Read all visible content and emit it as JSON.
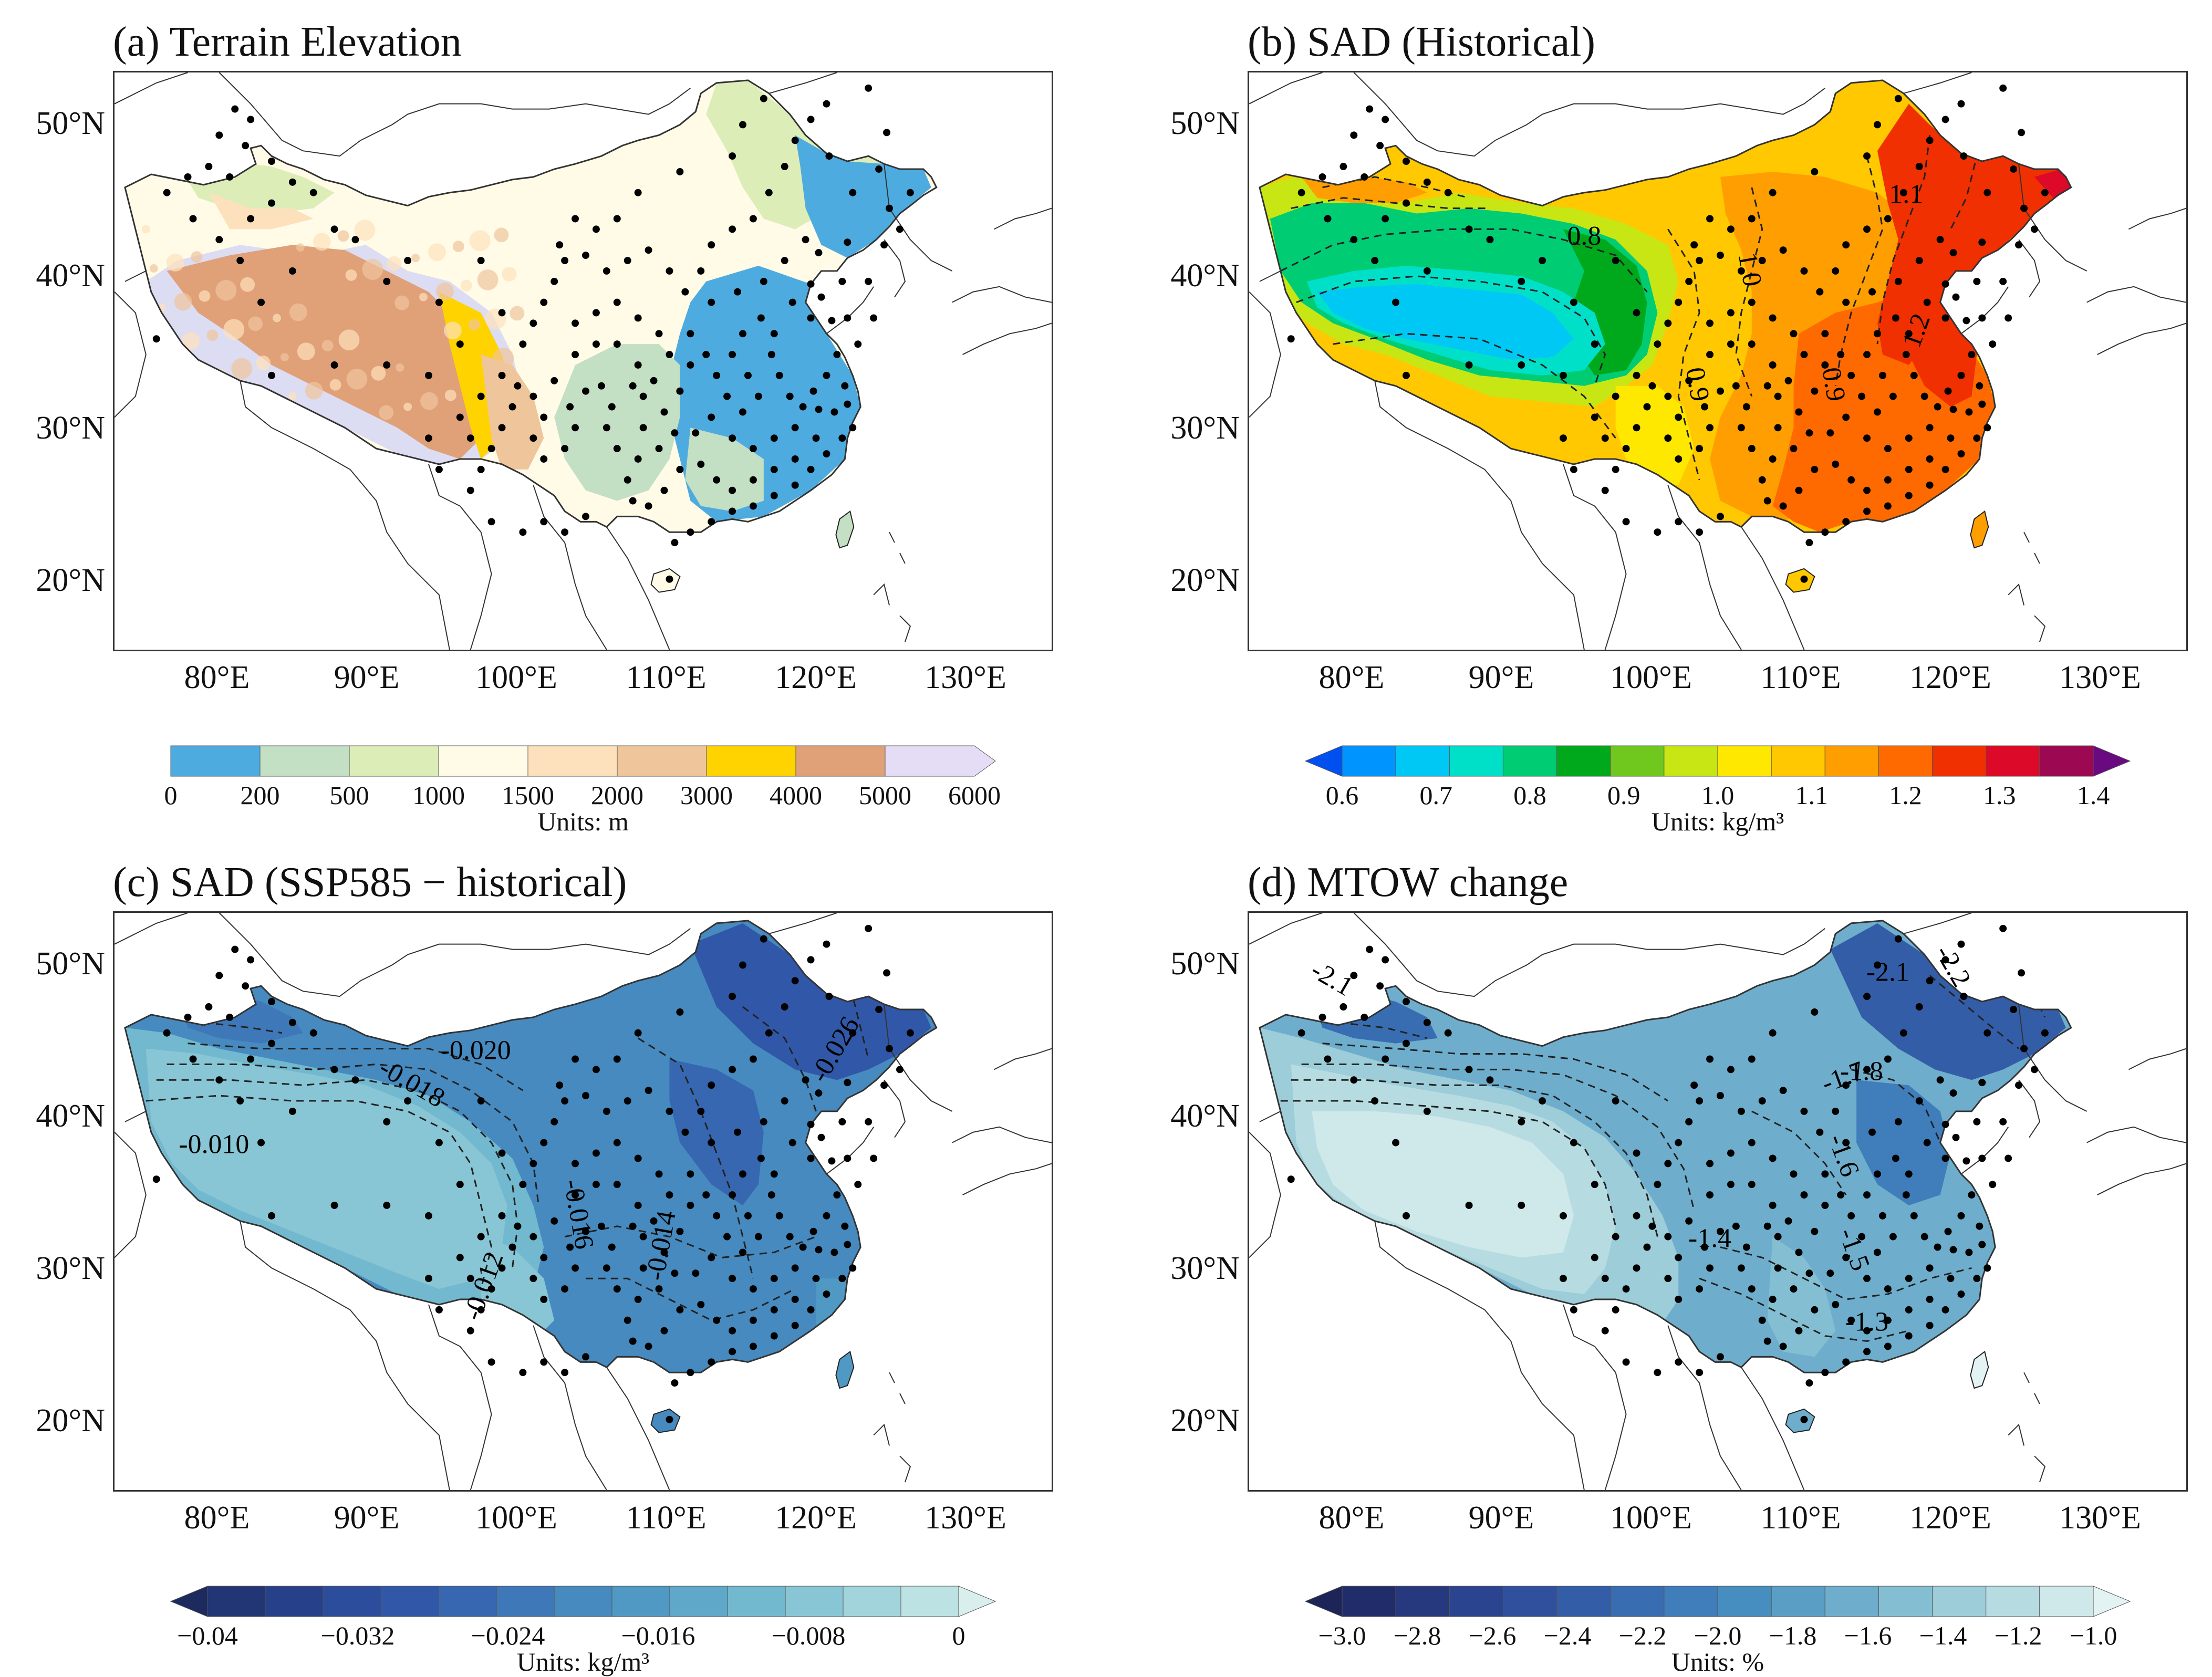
{
  "panels": [
    {
      "id": "a",
      "title": "(a) Terrain Elevation",
      "lat_labels": [
        "50°N",
        "40°N",
        "30°N",
        "20°N"
      ],
      "lon_labels": [
        "80°E",
        "90°E",
        "100°E",
        "110°E",
        "120°E",
        "130°E"
      ],
      "colorbar": {
        "type": "bounded",
        "ticks": [
          "0",
          "200",
          "500",
          "1000",
          "1500",
          "2000",
          "3000",
          "4000",
          "5000",
          "6000"
        ],
        "colors": [
          "#4eabe0",
          "#c3dfc4",
          "#dcedb8",
          "#fffbe6",
          "#fde1bc",
          "#efc59c",
          "#ffd300",
          "#e0a078",
          "#e5dcf5"
        ],
        "extend": "max",
        "units": "Units: m"
      },
      "contour_labels": []
    },
    {
      "id": "b",
      "title": "(b) SAD (Historical)",
      "lat_labels": [
        "50°N",
        "40°N",
        "30°N",
        "20°N"
      ],
      "lon_labels": [
        "80°E",
        "90°E",
        "100°E",
        "110°E",
        "120°E",
        "130°E"
      ],
      "colorbar": {
        "type": "extended",
        "ticks": [
          "0.6",
          "0.7",
          "0.8",
          "0.9",
          "1.0",
          "1.1",
          "1.2",
          "1.3",
          "1.4"
        ],
        "colors": [
          "#0050f0",
          "#0094ff",
          "#00c8f5",
          "#00e0c8",
          "#00cc74",
          "#00a81c",
          "#70c81e",
          "#c8e614",
          "#ffe800",
          "#ffc800",
          "#ff9e00",
          "#ff6a00",
          "#f03000",
          "#dc0a28",
          "#9c0852",
          "#6a0a80"
        ],
        "extend": "both",
        "units": "Units: kg/m³"
      },
      "contour_labels": [
        "1.1",
        "0.8",
        "1.0",
        "1.2",
        "0.9",
        "0.9"
      ]
    },
    {
      "id": "c",
      "title": "(c) SAD (SSP585 − historical)",
      "lat_labels": [
        "50°N",
        "40°N",
        "30°N",
        "20°N"
      ],
      "lon_labels": [
        "80°E",
        "90°E",
        "100°E",
        "110°E",
        "120°E",
        "130°E"
      ],
      "colorbar": {
        "type": "extended",
        "ticks": [
          "−0.04",
          "−0.032",
          "−0.024",
          "−0.016",
          "−0.008",
          "0"
        ],
        "colors": [
          "#1d2a5e",
          "#223574",
          "#27408a",
          "#2c4c9c",
          "#3158a8",
          "#3767b0",
          "#3e78b8",
          "#468abf",
          "#5099c4",
          "#5fa8c9",
          "#72b8cf",
          "#89c6d5",
          "#a2d4dc",
          "#bde2e4",
          "#d8efee"
        ],
        "extend": "both",
        "units": "Units: kg/m³"
      },
      "contour_labels": [
        "-0.020",
        "-0.018",
        "-0.010",
        "-0.026",
        "-0.016",
        "-0.012",
        "-0.014"
      ]
    },
    {
      "id": "d",
      "title": "(d) MTOW change",
      "lat_labels": [
        "50°N",
        "40°N",
        "30°N",
        "20°N"
      ],
      "lon_labels": [
        "80°E",
        "90°E",
        "100°E",
        "110°E",
        "120°E",
        "130°E"
      ],
      "colorbar": {
        "type": "extended",
        "ticks": [
          "−3.0",
          "−2.8",
          "−2.6",
          "−2.4",
          "−2.2",
          "−2.0",
          "−1.8",
          "−1.6",
          "−1.4",
          "−1.2",
          "−1.0"
        ],
        "colors": [
          "#1c2458",
          "#212d6a",
          "#26387e",
          "#2b4490",
          "#30509e",
          "#345da8",
          "#396db2",
          "#3f7eba",
          "#478ec0",
          "#5a9ec6",
          "#6eaecc",
          "#84bed2",
          "#9ccdd9",
          "#b6dce2",
          "#cfe9eb",
          "#e3f3f3"
        ],
        "extend": "both",
        "units": "Units: %"
      },
      "contour_labels": [
        "-2.1",
        "-2.2",
        "-2.1",
        "-1.7",
        "-1.8",
        "-1.6",
        "-1.5",
        "-1.4",
        "-1.3"
      ]
    }
  ]
}
